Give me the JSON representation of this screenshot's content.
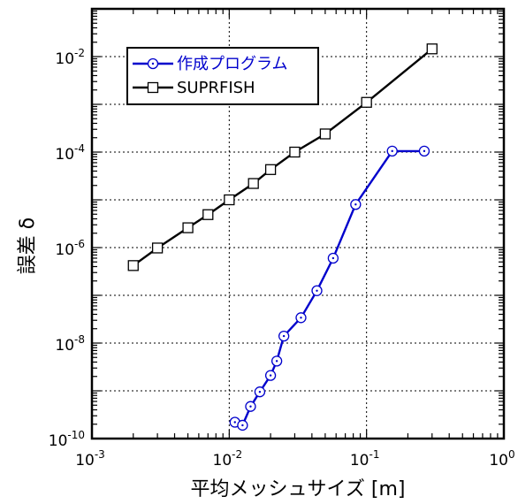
{
  "chart_data": {
    "type": "line",
    "xscale": "log",
    "yscale": "log",
    "xlim": [
      0.001,
      1
    ],
    "ylim": [
      1e-10,
      0.1
    ],
    "xlabel": "平均メッシュサイズ [m]",
    "ylabel": "誤差 δ",
    "x_ticks": [
      {
        "value": 0.001,
        "base": "10",
        "exp": "-3"
      },
      {
        "value": 0.01,
        "base": "10",
        "exp": "-2"
      },
      {
        "value": 0.1,
        "base": "10",
        "exp": "-1"
      },
      {
        "value": 1,
        "base": "10",
        "exp": "0"
      }
    ],
    "y_ticks": [
      {
        "value": 1e-10,
        "base": "10",
        "exp": "-10"
      },
      {
        "value": 1e-08,
        "base": "10",
        "exp": "-8"
      },
      {
        "value": 1e-06,
        "base": "10",
        "exp": "-6"
      },
      {
        "value": 0.0001,
        "base": "10",
        "exp": "-4"
      },
      {
        "value": 0.01,
        "base": "10",
        "exp": "-2"
      }
    ],
    "grid": true,
    "legend_position": "top-left",
    "series": [
      {
        "name": "作成プログラム",
        "color": "#0000cc",
        "marker": "circle-dot",
        "x": [
          0.011,
          0.0125,
          0.0143,
          0.0167,
          0.02,
          0.0222,
          0.025,
          0.0333,
          0.0435,
          0.0571,
          0.0833,
          0.1538,
          0.2632
        ],
        "y": [
          2.2e-10,
          1.9e-10,
          4.7e-10,
          9.5e-10,
          2.1e-09,
          4.2e-09,
          1.4e-08,
          3.4e-08,
          1.25e-07,
          6e-07,
          8e-06,
          0.000105,
          0.000105
        ]
      },
      {
        "name": "SUPRFISH",
        "color": "#000000",
        "marker": "square",
        "x": [
          0.002,
          0.003,
          0.005,
          0.007,
          0.01,
          0.015,
          0.02,
          0.03,
          0.05,
          0.1,
          0.3
        ],
        "y": [
          4.2e-07,
          9.8e-07,
          2.6e-06,
          4.9e-06,
          1e-05,
          2.2e-05,
          4.3e-05,
          0.0001,
          0.00024,
          0.0011,
          0.0145
        ]
      }
    ]
  }
}
